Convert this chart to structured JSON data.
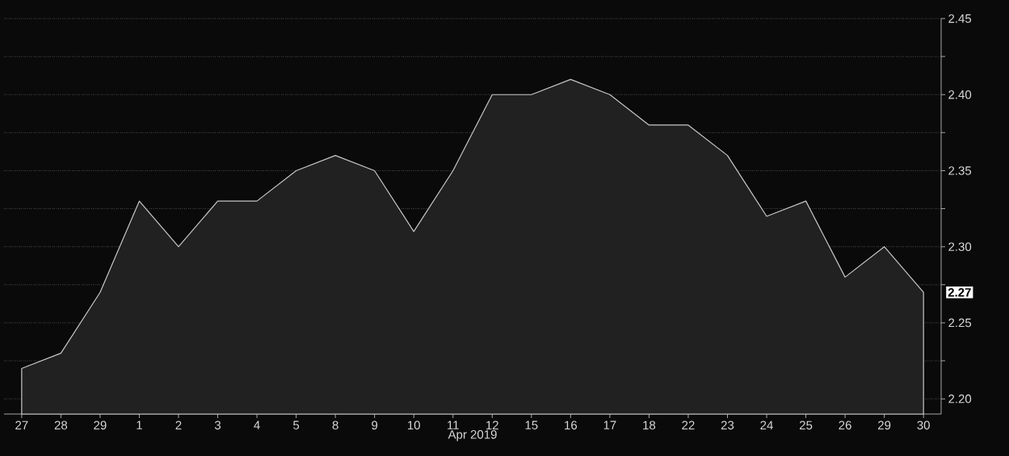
{
  "chart_data": {
    "type": "area",
    "xlabel": "Apr 2019",
    "categories": [
      "27",
      "28",
      "29",
      "1",
      "2",
      "3",
      "4",
      "5",
      "8",
      "9",
      "10",
      "11",
      "12",
      "15",
      "16",
      "17",
      "18",
      "22",
      "23",
      "24",
      "25",
      "26",
      "29",
      "30"
    ],
    "values": [
      2.22,
      2.23,
      2.27,
      2.33,
      2.3,
      2.33,
      2.33,
      2.35,
      2.36,
      2.35,
      2.31,
      2.35,
      2.4,
      2.4,
      2.41,
      2.4,
      2.38,
      2.38,
      2.36,
      2.32,
      2.33,
      2.28,
      2.3,
      2.27
    ],
    "color": "#c8c8c8",
    "ylim": [
      2.19,
      2.45
    ],
    "yticks": [
      {
        "value": 2.2,
        "label": "2.20"
      },
      {
        "value": 2.225,
        "label": null
      },
      {
        "value": 2.25,
        "label": "2.25"
      },
      {
        "value": 2.275,
        "label": null
      },
      {
        "value": 2.3,
        "label": "2.30"
      },
      {
        "value": 2.325,
        "label": null
      },
      {
        "value": 2.35,
        "label": "2.35"
      },
      {
        "value": 2.375,
        "label": null
      },
      {
        "value": 2.4,
        "label": "2.40"
      },
      {
        "value": 2.425,
        "label": null
      },
      {
        "value": 2.45,
        "label": "2.45"
      }
    ],
    "grid": "y",
    "annotations": [
      {
        "text": "2.27",
        "x": "30",
        "y": 2.27
      }
    ]
  }
}
